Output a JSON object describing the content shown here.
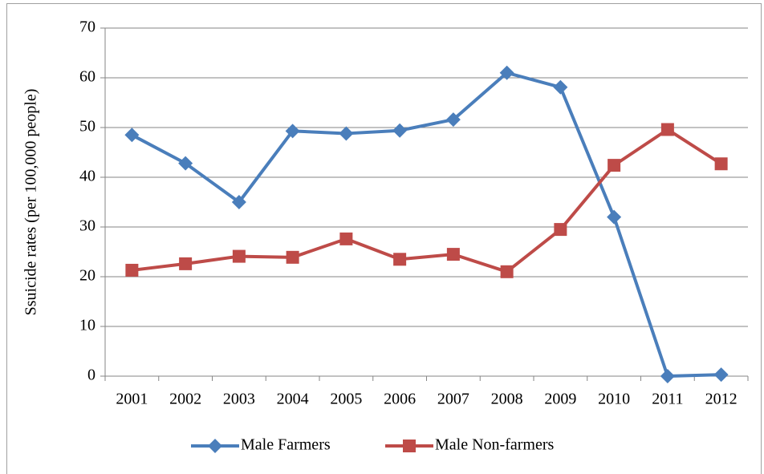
{
  "chart_data": {
    "type": "line",
    "y_label": "Ssuicide rates  (per 100,000 people)",
    "categories": [
      "2001",
      "2002",
      "2003",
      "2004",
      "2005",
      "2006",
      "2007",
      "2008",
      "2009",
      "2010",
      "2011",
      "2012"
    ],
    "series": [
      {
        "name": "Male Farmers",
        "color": "#4a7ebb",
        "marker": "diamond",
        "values": [
          48.5,
          42.8,
          35,
          49.3,
          48.8,
          49.4,
          51.6,
          61,
          58.1,
          32,
          0,
          0.3
        ]
      },
      {
        "name": "Male Non-farmers",
        "color": "#be4b48",
        "marker": "square",
        "values": [
          21.3,
          22.6,
          24.1,
          23.9,
          27.6,
          23.5,
          24.5,
          21,
          29.5,
          42.4,
          49.6,
          42.7
        ]
      }
    ],
    "ylim": [
      0,
      70
    ],
    "yticks": [
      0,
      10,
      20,
      30,
      40,
      50,
      60,
      70
    ],
    "grid": true,
    "legend": "bottom"
  }
}
